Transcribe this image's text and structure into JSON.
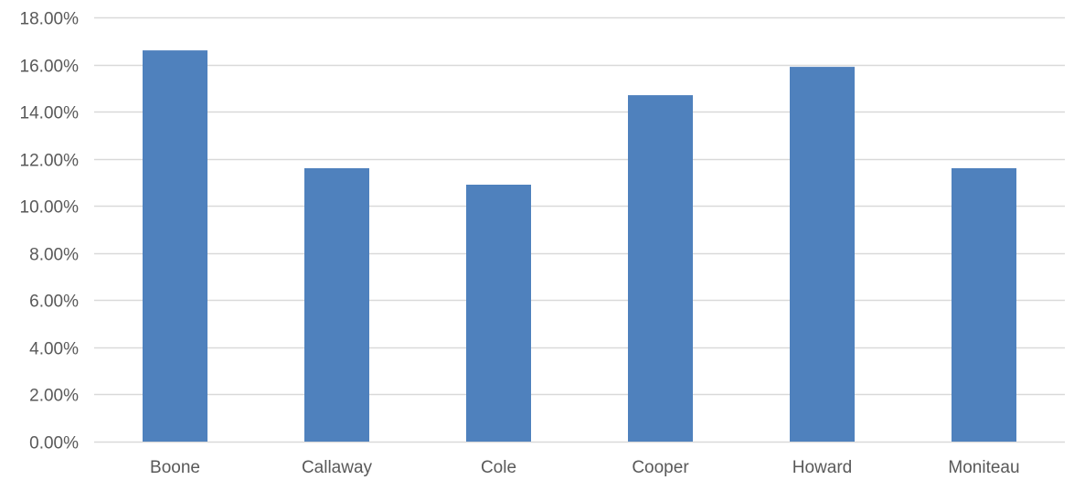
{
  "chart_data": {
    "type": "bar",
    "title": "",
    "xlabel": "",
    "ylabel": "",
    "categories": [
      "Boone",
      "Callaway",
      "Cole",
      "Cooper",
      "Howard",
      "Moniteau"
    ],
    "values": [
      0.166,
      0.116,
      0.109,
      0.147,
      0.159,
      0.116
    ],
    "ylim": [
      0,
      0.18
    ],
    "yticks": [
      0,
      0.02,
      0.04,
      0.06,
      0.08,
      0.1,
      0.12,
      0.14,
      0.16,
      0.18
    ],
    "ytick_labels": [
      "0.00%",
      "2.00%",
      "4.00%",
      "6.00%",
      "8.00%",
      "10.00%",
      "12.00%",
      "14.00%",
      "16.00%",
      "18.00%"
    ],
    "grid": true,
    "legend": "none",
    "colors": {
      "bar": "#4F81BD",
      "gridline": "#D9D9D9",
      "text": "#595959"
    }
  }
}
